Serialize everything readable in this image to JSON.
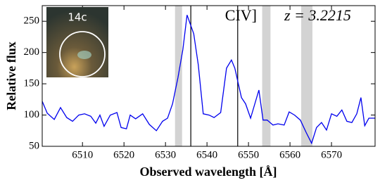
{
  "chart_data": {
    "type": "line",
    "x_label": "Observed wavelength [Å]",
    "y_label": "Relative flux",
    "annotation": "CIV]",
    "redshift_label": "z = 3.2215",
    "inset_label": "14c",
    "xlim": [
      6500.3,
      6580.5
    ],
    "ylim": [
      50,
      275
    ],
    "xticks": [
      6510,
      6520,
      6530,
      6540,
      6550,
      6560,
      6570
    ],
    "yticks": [
      50,
      100,
      150,
      200,
      250
    ],
    "shaded_regions": [
      [
        6532.3,
        6534.0
      ],
      [
        6553.3,
        6555.3
      ],
      [
        6562.7,
        6565.4
      ]
    ],
    "vlines": [
      6536.1,
      6547.4
    ],
    "series": [
      {
        "color": "#0000ee",
        "x": [
          6500.3,
          6501.5,
          6503.2,
          6504.7,
          6506.2,
          6507.6,
          6509.1,
          6510.5,
          6512.0,
          6513.2,
          6514.2,
          6515.2,
          6516.7,
          6518.3,
          6519.3,
          6520.6,
          6521.5,
          6522.8,
          6524.5,
          6526.1,
          6527.8,
          6529.3,
          6530.5,
          6531.7,
          6533.0,
          6534.2,
          6535.2,
          6536.8,
          6537.9,
          6539.1,
          6540.5,
          6541.7,
          6543.3,
          6544.7,
          6545.9,
          6546.7,
          6548.3,
          6549.3,
          6550.5,
          6552.5,
          6553.5,
          6554.5,
          6555.9,
          6557.1,
          6558.6,
          6559.8,
          6561.1,
          6562.5,
          6563.9,
          6565.2,
          6566.4,
          6567.6,
          6568.8,
          6570.0,
          6571.3,
          6572.5,
          6573.7,
          6574.9,
          6576.1,
          6577.1,
          6578.0,
          6579.0,
          6580.5
        ],
        "values": [
          122,
          103,
          93,
          112,
          96,
          90,
          100,
          102,
          98,
          87,
          100,
          82,
          100,
          104,
          80,
          78,
          100,
          94,
          102,
          85,
          75,
          90,
          95,
          118,
          160,
          205,
          260,
          230,
          180,
          102,
          100,
          96,
          104,
          175,
          188,
          175,
          128,
          118,
          95,
          140,
          92,
          92,
          84,
          86,
          84,
          105,
          100,
          92,
          72,
          55,
          80,
          88,
          76,
          102,
          98,
          108,
          90,
          88,
          102,
          128,
          83,
          95,
          95
        ]
      }
    ]
  }
}
